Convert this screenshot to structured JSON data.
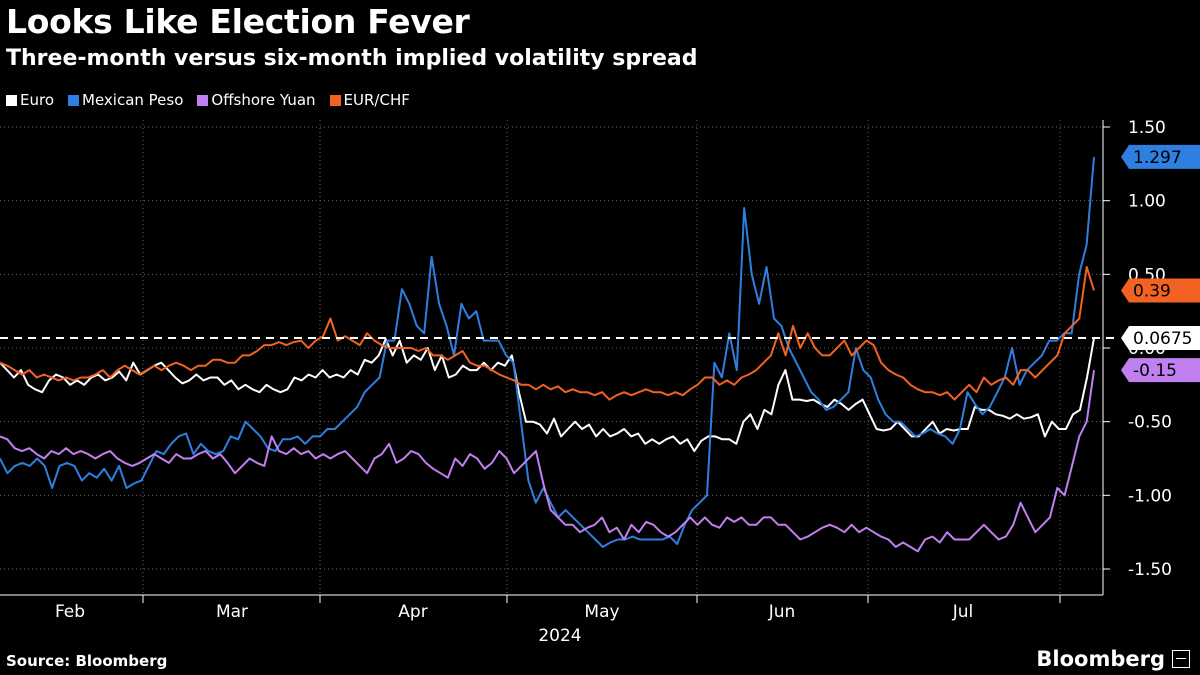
{
  "title": "Looks Like Election Fever",
  "subtitle": "Three-month versus six-month implied volatility spread",
  "source": "Source: Bloomberg",
  "brand": "Bloomberg",
  "chart_data": {
    "type": "line",
    "title": "Looks Like Election Fever",
    "subtitle": "Three-month versus six-month implied volatility spread",
    "xlabel": "2024",
    "ylabel": "",
    "ylim": [
      -1.6,
      1.6
    ],
    "yticks": [
      1.5,
      1.0,
      0.5,
      0.0,
      -0.5,
      -1.0,
      -1.5
    ],
    "ytick_labels": [
      "1.50",
      "1.00",
      "0.50",
      "0.00",
      "-0.50",
      "-1.00",
      "-1.50"
    ],
    "month_labels": [
      "Feb",
      "Mar",
      "Apr",
      "May",
      "Jun",
      "Jul"
    ],
    "reference_line": 0.0675,
    "series": [
      {
        "name": "Euro",
        "color": "#ffffff",
        "last_label": "0.0675",
        "values": [
          -0.1,
          -0.15,
          -0.2,
          -0.15,
          -0.25,
          -0.28,
          -0.3,
          -0.22,
          -0.18,
          -0.2,
          -0.25,
          -0.22,
          -0.25,
          -0.2,
          -0.18,
          -0.22,
          -0.2,
          -0.16,
          -0.22,
          -0.1,
          -0.18,
          -0.15,
          -0.12,
          -0.1,
          -0.15,
          -0.2,
          -0.24,
          -0.22,
          -0.18,
          -0.22,
          -0.2,
          -0.2,
          -0.25,
          -0.22,
          -0.28,
          -0.25,
          -0.28,
          -0.3,
          -0.25,
          -0.28,
          -0.3,
          -0.28,
          -0.2,
          -0.22,
          -0.18,
          -0.2,
          -0.15,
          -0.2,
          -0.18,
          -0.2,
          -0.15,
          -0.18,
          -0.08,
          -0.1,
          -0.05,
          0.06,
          -0.05,
          0.05,
          -0.1,
          -0.05,
          -0.08,
          0.0,
          -0.15,
          -0.05,
          -0.2,
          -0.18,
          -0.12,
          -0.15,
          -0.15,
          -0.1,
          -0.15,
          -0.1,
          -0.12,
          -0.05,
          -0.3,
          -0.5,
          -0.5,
          -0.52,
          -0.58,
          -0.48,
          -0.6,
          -0.55,
          -0.5,
          -0.55,
          -0.52,
          -0.6,
          -0.55,
          -0.6,
          -0.58,
          -0.55,
          -0.6,
          -0.58,
          -0.65,
          -0.62,
          -0.65,
          -0.62,
          -0.6,
          -0.65,
          -0.62,
          -0.7,
          -0.63,
          -0.6,
          -0.6,
          -0.62,
          -0.62,
          -0.65,
          -0.5,
          -0.45,
          -0.55,
          -0.42,
          -0.45,
          -0.25,
          -0.15,
          -0.35,
          -0.35,
          -0.36,
          -0.35,
          -0.38,
          -0.4,
          -0.35,
          -0.38,
          -0.42,
          -0.38,
          -0.35,
          -0.45,
          -0.55,
          -0.56,
          -0.55,
          -0.5,
          -0.55,
          -0.6,
          -0.6,
          -0.55,
          -0.5,
          -0.58,
          -0.55,
          -0.56,
          -0.55,
          -0.55,
          -0.4,
          -0.42,
          -0.42,
          -0.45,
          -0.46,
          -0.48,
          -0.45,
          -0.48,
          -0.47,
          -0.45,
          -0.6,
          -0.5,
          -0.55,
          -0.55,
          -0.45,
          -0.42,
          -0.2,
          0.0675
        ]
      },
      {
        "name": "Mexican Peso",
        "color": "#2f7fe0",
        "last_label": "1.297",
        "values": [
          -0.75,
          -0.85,
          -0.8,
          -0.78,
          -0.8,
          -0.75,
          -0.8,
          -0.95,
          -0.8,
          -0.78,
          -0.8,
          -0.9,
          -0.85,
          -0.88,
          -0.82,
          -0.9,
          -0.8,
          -0.95,
          -0.92,
          -0.9,
          -0.8,
          -0.7,
          -0.72,
          -0.65,
          -0.6,
          -0.58,
          -0.72,
          -0.65,
          -0.7,
          -0.72,
          -0.7,
          -0.6,
          -0.62,
          -0.5,
          -0.55,
          -0.6,
          -0.68,
          -0.7,
          -0.62,
          -0.62,
          -0.6,
          -0.65,
          -0.6,
          -0.6,
          -0.55,
          -0.55,
          -0.5,
          -0.45,
          -0.4,
          -0.3,
          -0.25,
          -0.2,
          0.05,
          0.05,
          0.4,
          0.3,
          0.15,
          0.1,
          0.62,
          0.3,
          0.15,
          -0.05,
          0.3,
          0.2,
          0.25,
          0.05,
          0.05,
          0.05,
          -0.05,
          -0.1,
          -0.5,
          -0.9,
          -1.05,
          -0.95,
          -1.05,
          -1.15,
          -1.1,
          -1.15,
          -1.2,
          -1.25,
          -1.3,
          -1.35,
          -1.32,
          -1.3,
          -1.3,
          -1.28,
          -1.3,
          -1.3,
          -1.3,
          -1.3,
          -1.28,
          -1.33,
          -1.2,
          -1.1,
          -1.05,
          -1.0,
          -0.1,
          -0.2,
          0.1,
          -0.15,
          0.95,
          0.5,
          0.3,
          0.55,
          0.2,
          0.15,
          0.0,
          -0.1,
          -0.2,
          -0.3,
          -0.35,
          -0.42,
          -0.4,
          -0.35,
          -0.3,
          0.0,
          -0.15,
          -0.2,
          -0.35,
          -0.45,
          -0.5,
          -0.5,
          -0.55,
          -0.6,
          -0.58,
          -0.55,
          -0.58,
          -0.6,
          -0.65,
          -0.55,
          -0.3,
          -0.38,
          -0.45,
          -0.4,
          -0.3,
          -0.2,
          0.0,
          -0.25,
          -0.15,
          -0.1,
          -0.05,
          0.05,
          0.05,
          0.1,
          0.1,
          0.5,
          0.7,
          1.297
        ]
      },
      {
        "name": "Offshore Yuan",
        "color": "#c080f0",
        "last_label": "-0.15",
        "values": [
          -0.6,
          -0.62,
          -0.68,
          -0.7,
          -0.68,
          -0.72,
          -0.75,
          -0.7,
          -0.72,
          -0.68,
          -0.72,
          -0.7,
          -0.72,
          -0.75,
          -0.72,
          -0.7,
          -0.75,
          -0.78,
          -0.8,
          -0.78,
          -0.75,
          -0.72,
          -0.75,
          -0.78,
          -0.72,
          -0.75,
          -0.75,
          -0.72,
          -0.7,
          -0.75,
          -0.72,
          -0.78,
          -0.85,
          -0.8,
          -0.75,
          -0.78,
          -0.8,
          -0.6,
          -0.7,
          -0.72,
          -0.68,
          -0.72,
          -0.7,
          -0.75,
          -0.72,
          -0.75,
          -0.72,
          -0.7,
          -0.75,
          -0.8,
          -0.85,
          -0.75,
          -0.72,
          -0.65,
          -0.78,
          -0.75,
          -0.7,
          -0.72,
          -0.78,
          -0.82,
          -0.85,
          -0.88,
          -0.75,
          -0.8,
          -0.72,
          -0.75,
          -0.82,
          -0.78,
          -0.7,
          -0.75,
          -0.85,
          -0.8,
          -0.75,
          -0.7,
          -0.92,
          -1.1,
          -1.15,
          -1.2,
          -1.2,
          -1.25,
          -1.22,
          -1.2,
          -1.15,
          -1.25,
          -1.22,
          -1.3,
          -1.2,
          -1.25,
          -1.18,
          -1.2,
          -1.25,
          -1.28,
          -1.25,
          -1.2,
          -1.15,
          -1.2,
          -1.15,
          -1.2,
          -1.22,
          -1.15,
          -1.18,
          -1.15,
          -1.2,
          -1.2,
          -1.15,
          -1.15,
          -1.2,
          -1.2,
          -1.25,
          -1.3,
          -1.28,
          -1.25,
          -1.22,
          -1.2,
          -1.22,
          -1.25,
          -1.2,
          -1.25,
          -1.22,
          -1.25,
          -1.28,
          -1.3,
          -1.35,
          -1.32,
          -1.35,
          -1.38,
          -1.3,
          -1.28,
          -1.32,
          -1.25,
          -1.3,
          -1.3,
          -1.3,
          -1.25,
          -1.2,
          -1.25,
          -1.3,
          -1.28,
          -1.2,
          -1.05,
          -1.15,
          -1.25,
          -1.2,
          -1.15,
          -0.95,
          -1.0,
          -0.8,
          -0.6,
          -0.5,
          -0.15
        ]
      },
      {
        "name": "EUR/CHF",
        "color": "#f26222",
        "last_label": "0.39",
        "values": [
          -0.1,
          -0.12,
          -0.15,
          -0.18,
          -0.15,
          -0.2,
          -0.18,
          -0.2,
          -0.22,
          -0.2,
          -0.22,
          -0.2,
          -0.2,
          -0.18,
          -0.15,
          -0.2,
          -0.15,
          -0.12,
          -0.15,
          -0.18,
          -0.15,
          -0.12,
          -0.15,
          -0.12,
          -0.1,
          -0.12,
          -0.15,
          -0.12,
          -0.12,
          -0.08,
          -0.08,
          -0.1,
          -0.1,
          -0.05,
          -0.05,
          -0.02,
          0.02,
          0.02,
          0.04,
          0.02,
          0.04,
          0.05,
          0.0,
          0.05,
          0.08,
          0.2,
          0.05,
          0.08,
          0.05,
          0.02,
          0.1,
          0.05,
          0.02,
          0.0,
          0.0,
          0.0,
          0.0,
          -0.02,
          0.0,
          -0.05,
          -0.05,
          -0.08,
          -0.05,
          -0.02,
          -0.1,
          -0.12,
          -0.12,
          -0.15,
          -0.18,
          -0.2,
          -0.22,
          -0.25,
          -0.25,
          -0.28,
          -0.25,
          -0.28,
          -0.26,
          -0.3,
          -0.28,
          -0.3,
          -0.3,
          -0.32,
          -0.3,
          -0.35,
          -0.32,
          -0.3,
          -0.32,
          -0.3,
          -0.28,
          -0.3,
          -0.3,
          -0.32,
          -0.3,
          -0.32,
          -0.28,
          -0.25,
          -0.2,
          -0.2,
          -0.25,
          -0.22,
          -0.25,
          -0.2,
          -0.18,
          -0.15,
          -0.1,
          -0.05,
          0.1,
          -0.05,
          0.15,
          0.0,
          0.1,
          0.0,
          -0.05,
          -0.05,
          0.0,
          0.05,
          -0.05,
          0.0,
          0.05,
          0.02,
          -0.1,
          -0.15,
          -0.18,
          -0.2,
          -0.25,
          -0.28,
          -0.3,
          -0.3,
          -0.32,
          -0.3,
          -0.35,
          -0.3,
          -0.25,
          -0.3,
          -0.2,
          -0.25,
          -0.22,
          -0.2,
          -0.25,
          -0.15,
          -0.15,
          -0.2,
          -0.15,
          -0.1,
          -0.05,
          0.1,
          0.15,
          0.2,
          0.55,
          0.39
        ]
      }
    ]
  }
}
